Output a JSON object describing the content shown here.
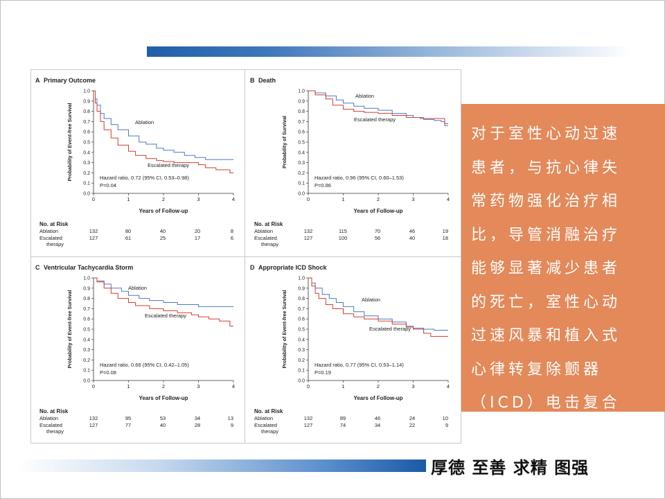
{
  "slide": {
    "motto": "厚德 至善 求精 图强",
    "side_text": "对于室性心动过速患者，与抗心律失常药物强化治疗相比，导管消融治疗能够显著减少患者的死亡，室性心动过速风暴和植入式心律转复除颤器（ICD）电击复合终点。"
  },
  "colors": {
    "ablation": "#4a78c8",
    "escalated": "#d23c2a",
    "side_box": "#e3895a"
  },
  "chart_data": [
    {
      "type": "line",
      "panel_letter": "A",
      "title": "Primary Outcome",
      "xlabel": "Years of Follow-up",
      "ylabel": "Probability of Event-free Survival",
      "xlim": [
        0,
        4
      ],
      "ylim": [
        0,
        1
      ],
      "xticks": [
        "0",
        "1",
        "2",
        "3",
        "4"
      ],
      "yticks": [
        "0.0",
        "0.1",
        "0.2",
        "0.3",
        "0.4",
        "0.5",
        "0.6",
        "0.7",
        "0.8",
        "0.9",
        "1.0"
      ],
      "hazard": "Hazard ratio, 0.72 (95% CI, 0.53–0.98)",
      "pvalue": "P=0.04",
      "series": [
        {
          "name": "Ablation",
          "x": [
            0,
            0.05,
            0.1,
            0.2,
            0.3,
            0.5,
            0.7,
            1.0,
            1.3,
            1.5,
            1.8,
            2.0,
            2.3,
            2.6,
            2.9,
            3.2,
            3.5,
            4.0
          ],
          "y": [
            1.0,
            0.92,
            0.86,
            0.78,
            0.73,
            0.67,
            0.62,
            0.56,
            0.5,
            0.48,
            0.44,
            0.42,
            0.4,
            0.37,
            0.35,
            0.33,
            0.33,
            0.33
          ]
        },
        {
          "name": "Escalated therapy",
          "x": [
            0,
            0.05,
            0.1,
            0.2,
            0.3,
            0.5,
            0.7,
            1.0,
            1.2,
            1.5,
            1.8,
            2.0,
            2.3,
            2.6,
            3.0,
            3.2,
            3.5,
            3.8,
            3.9,
            4.0
          ],
          "y": [
            1.0,
            0.88,
            0.8,
            0.7,
            0.62,
            0.54,
            0.47,
            0.41,
            0.37,
            0.34,
            0.32,
            0.31,
            0.3,
            0.3,
            0.28,
            0.25,
            0.23,
            0.23,
            0.2,
            0.2
          ]
        }
      ],
      "risk_header": "No. at Risk",
      "risk_rows": [
        {
          "label": "Ablation",
          "values": [
            "132",
            "80",
            "40",
            "20",
            "8"
          ]
        },
        {
          "label": "Escalated therapy",
          "values": [
            "127",
            "61",
            "25",
            "17",
            "6"
          ]
        }
      ]
    },
    {
      "type": "line",
      "panel_letter": "B",
      "title": "Death",
      "xlabel": "Years of Follow-up",
      "ylabel": "Probability of Survival",
      "xlim": [
        0,
        4
      ],
      "ylim": [
        0,
        1
      ],
      "xticks": [
        "0",
        "1",
        "2",
        "3",
        "4"
      ],
      "yticks": [
        "0.0",
        "0.1",
        "0.2",
        "0.3",
        "0.4",
        "0.5",
        "0.6",
        "0.7",
        "0.8",
        "0.9",
        "1.0"
      ],
      "hazard": "Hazard ratio, 0.96 (95% CI, 0.60–1.53)",
      "pvalue": "P=0.86",
      "series": [
        {
          "name": "Ablation",
          "x": [
            0,
            0.2,
            0.5,
            0.8,
            1.0,
            1.3,
            1.6,
            2.0,
            2.4,
            2.8,
            3.0,
            3.3,
            3.6,
            3.8,
            3.9,
            4.0
          ],
          "y": [
            1.0,
            0.98,
            0.95,
            0.91,
            0.88,
            0.85,
            0.83,
            0.81,
            0.78,
            0.76,
            0.74,
            0.72,
            0.71,
            0.7,
            0.66,
            0.66
          ]
        },
        {
          "name": "Escalated therapy",
          "x": [
            0,
            0.2,
            0.5,
            0.7,
            1.0,
            1.3,
            1.6,
            2.0,
            2.4,
            2.8,
            3.2,
            3.6,
            3.9,
            4.0
          ],
          "y": [
            1.0,
            0.96,
            0.92,
            0.86,
            0.82,
            0.8,
            0.79,
            0.78,
            0.76,
            0.74,
            0.73,
            0.73,
            0.68,
            0.68
          ]
        }
      ],
      "risk_header": "No. at Risk",
      "risk_rows": [
        {
          "label": "Ablation",
          "values": [
            "132",
            "115",
            "70",
            "46",
            "19"
          ]
        },
        {
          "label": "Escalated therapy",
          "values": [
            "127",
            "100",
            "56",
            "40",
            "18"
          ]
        }
      ]
    },
    {
      "type": "line",
      "panel_letter": "C",
      "title": "Ventricular Tachycardia Storm",
      "xlabel": "Years of Follow-up",
      "ylabel": "Probability of Event-free Survival",
      "xlim": [
        0,
        4
      ],
      "ylim": [
        0,
        1
      ],
      "xticks": [
        "0",
        "1",
        "2",
        "3",
        "4"
      ],
      "yticks": [
        "0.0",
        "0.1",
        "0.2",
        "0.3",
        "0.4",
        "0.5",
        "0.6",
        "0.7",
        "0.8",
        "0.9",
        "1.0"
      ],
      "hazard": "Hazard ratio, 0.66 (95% CI, 0.42–1.05)",
      "pvalue": "P=0.08",
      "series": [
        {
          "name": "Ablation",
          "x": [
            0,
            0.1,
            0.3,
            0.5,
            0.8,
            1.0,
            1.3,
            1.6,
            2.0,
            2.4,
            2.8,
            3.0,
            3.5,
            4.0
          ],
          "y": [
            1.0,
            0.97,
            0.94,
            0.9,
            0.87,
            0.83,
            0.8,
            0.78,
            0.76,
            0.74,
            0.74,
            0.72,
            0.72,
            0.72
          ]
        },
        {
          "name": "Escalated therapy",
          "x": [
            0,
            0.1,
            0.3,
            0.5,
            0.7,
            1.0,
            1.2,
            1.6,
            2.0,
            2.4,
            2.8,
            3.0,
            3.3,
            3.6,
            3.9,
            4.0
          ],
          "y": [
            1.0,
            0.96,
            0.9,
            0.85,
            0.8,
            0.76,
            0.73,
            0.7,
            0.68,
            0.66,
            0.64,
            0.62,
            0.6,
            0.58,
            0.53,
            0.53
          ]
        }
      ],
      "risk_header": "No. at Risk",
      "risk_rows": [
        {
          "label": "Ablation",
          "values": [
            "132",
            "95",
            "53",
            "34",
            "13"
          ]
        },
        {
          "label": "Escalated therapy",
          "values": [
            "127",
            "77",
            "40",
            "28",
            "9"
          ]
        }
      ]
    },
    {
      "type": "line",
      "panel_letter": "D",
      "title": "Appropriate ICD Shock",
      "xlabel": "Years of Follow-up",
      "ylabel": "Probability of Event-free Survival",
      "xlim": [
        0,
        4
      ],
      "ylim": [
        0,
        1
      ],
      "xticks": [
        "0",
        "1",
        "2",
        "3",
        "4"
      ],
      "yticks": [
        "0.0",
        "0.1",
        "0.2",
        "0.3",
        "0.4",
        "0.5",
        "0.6",
        "0.7",
        "0.8",
        "0.9",
        "1.0"
      ],
      "hazard": "Hazard ratio, 0.77 (95% CI, 0.53–1.14)",
      "pvalue": "P=0.19",
      "series": [
        {
          "name": "Ablation",
          "x": [
            0,
            0.1,
            0.2,
            0.4,
            0.6,
            0.8,
            1.0,
            1.3,
            1.6,
            2.0,
            2.4,
            2.8,
            3.0,
            3.3,
            3.6,
            4.0
          ],
          "y": [
            1.0,
            0.95,
            0.9,
            0.84,
            0.8,
            0.76,
            0.72,
            0.67,
            0.63,
            0.6,
            0.57,
            0.53,
            0.51,
            0.5,
            0.49,
            0.49
          ]
        },
        {
          "name": "Escalated therapy",
          "x": [
            0,
            0.1,
            0.2,
            0.3,
            0.5,
            0.7,
            1.0,
            1.3,
            1.6,
            2.0,
            2.4,
            2.8,
            3.0,
            3.3,
            3.5,
            4.0
          ],
          "y": [
            1.0,
            0.92,
            0.85,
            0.8,
            0.74,
            0.7,
            0.65,
            0.62,
            0.6,
            0.58,
            0.55,
            0.52,
            0.5,
            0.46,
            0.43,
            0.43
          ]
        }
      ],
      "risk_header": "No. at Risk",
      "risk_rows": [
        {
          "label": "Ablation",
          "values": [
            "132",
            "89",
            "46",
            "24",
            "10"
          ]
        },
        {
          "label": "Escalated therapy",
          "values": [
            "127",
            "74",
            "34",
            "22",
            "9"
          ]
        }
      ]
    }
  ]
}
